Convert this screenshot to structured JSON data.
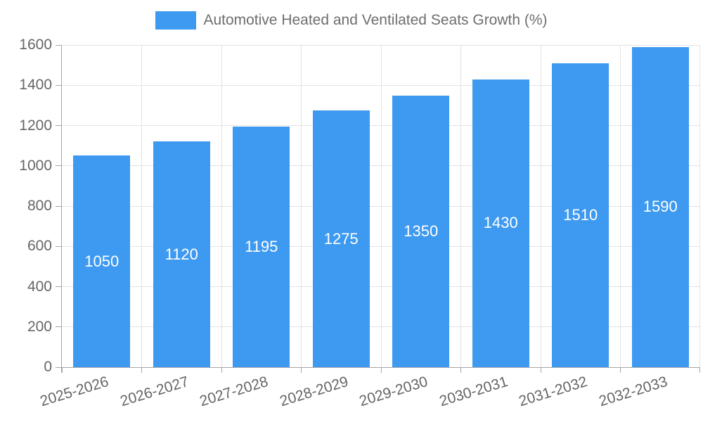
{
  "legend": {
    "series_label": "Automotive Heated and Ventilated Seats Growth (%)"
  },
  "chart_data": {
    "type": "bar",
    "title": "Automotive Heated and Ventilated Seats Growth (%)",
    "categories": [
      "2025-2026",
      "2026-2027",
      "2027-2028",
      "2028-2029",
      "2029-2030",
      "2030-2031",
      "2031-2032",
      "2032-2033"
    ],
    "values": [
      1050,
      1120,
      1195,
      1275,
      1350,
      1430,
      1510,
      1590
    ],
    "xlabel": "",
    "ylabel": "",
    "ylim": [
      0,
      1600
    ],
    "ytick_step": 200,
    "ytick_labels": [
      "0",
      "200",
      "400",
      "600",
      "800",
      "1000",
      "1200",
      "1400",
      "1600"
    ],
    "grid": true,
    "legend_position": "top",
    "bar_labels_inside": true,
    "colors": {
      "bar": "#3d9af0",
      "bar_label": "#ffffff",
      "tick_label": "#666666",
      "legend_text": "#6e6e6e",
      "grid": "#e3e3e3",
      "axis": "#a6a6a6"
    }
  }
}
